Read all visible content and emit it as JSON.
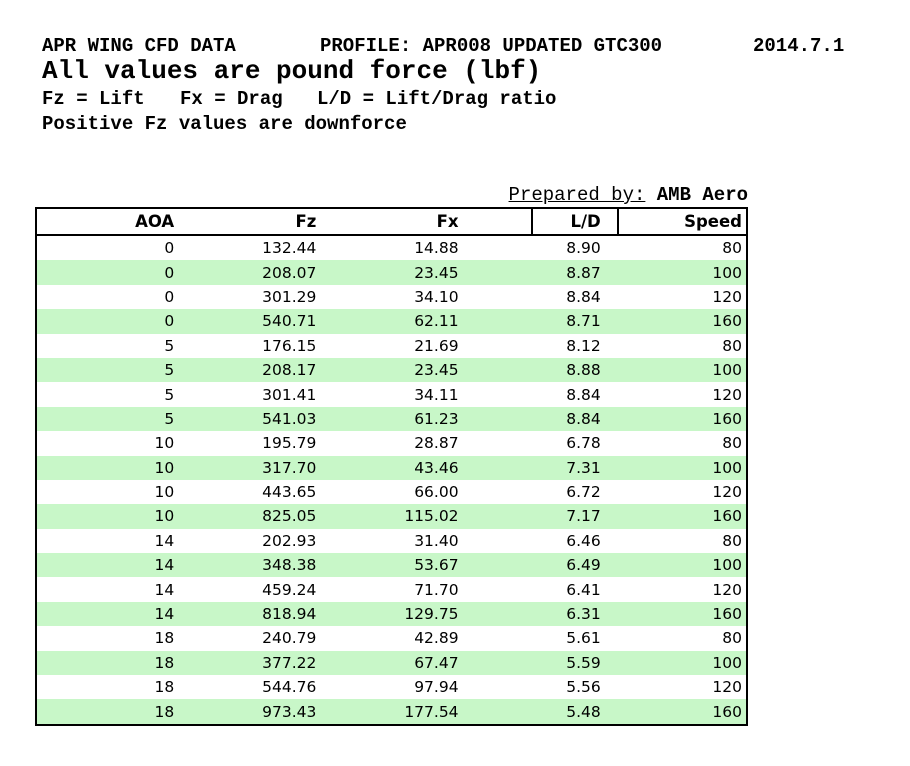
{
  "header": {
    "title_left": "APR WING CFD DATA",
    "title_profile": "PROFILE: APR008 UPDATED GTC300",
    "title_date": "2014.7.1",
    "subtitle": "All values are pound force (lbf)",
    "legend_items": [
      "Fz = Lift",
      "Fx = Drag",
      "L/D = Lift/Drag ratio"
    ],
    "note": "Positive Fz values are downforce"
  },
  "prepared": {
    "label": "Prepared by:",
    "value": "AMB Aero"
  },
  "colors": {
    "row_stripe": "#c8f7c8",
    "border": "#000000",
    "background": "#ffffff",
    "text": "#000000"
  },
  "table": {
    "columns": [
      "AOA",
      "Fz",
      "Fx",
      "L/D",
      "Speed"
    ],
    "rows": [
      [
        "0",
        "132.44",
        "14.88",
        "8.90",
        "80"
      ],
      [
        "0",
        "208.07",
        "23.45",
        "8.87",
        "100"
      ],
      [
        "0",
        "301.29",
        "34.10",
        "8.84",
        "120"
      ],
      [
        "0",
        "540.71",
        "62.11",
        "8.71",
        "160"
      ],
      [
        "5",
        "176.15",
        "21.69",
        "8.12",
        "80"
      ],
      [
        "5",
        "208.17",
        "23.45",
        "8.88",
        "100"
      ],
      [
        "5",
        "301.41",
        "34.11",
        "8.84",
        "120"
      ],
      [
        "5",
        "541.03",
        "61.23",
        "8.84",
        "160"
      ],
      [
        "10",
        "195.79",
        "28.87",
        "6.78",
        "80"
      ],
      [
        "10",
        "317.70",
        "43.46",
        "7.31",
        "100"
      ],
      [
        "10",
        "443.65",
        "66.00",
        "6.72",
        "120"
      ],
      [
        "10",
        "825.05",
        "115.02",
        "7.17",
        "160"
      ],
      [
        "14",
        "202.93",
        "31.40",
        "6.46",
        "80"
      ],
      [
        "14",
        "348.38",
        "53.67",
        "6.49",
        "100"
      ],
      [
        "14",
        "459.24",
        "71.70",
        "6.41",
        "120"
      ],
      [
        "14",
        "818.94",
        "129.75",
        "6.31",
        "160"
      ],
      [
        "18",
        "240.79",
        "42.89",
        "5.61",
        "80"
      ],
      [
        "18",
        "377.22",
        "67.47",
        "5.59",
        "100"
      ],
      [
        "18",
        "544.76",
        "97.94",
        "5.56",
        "120"
      ],
      [
        "18",
        "973.43",
        "177.54",
        "5.48",
        "160"
      ]
    ]
  }
}
